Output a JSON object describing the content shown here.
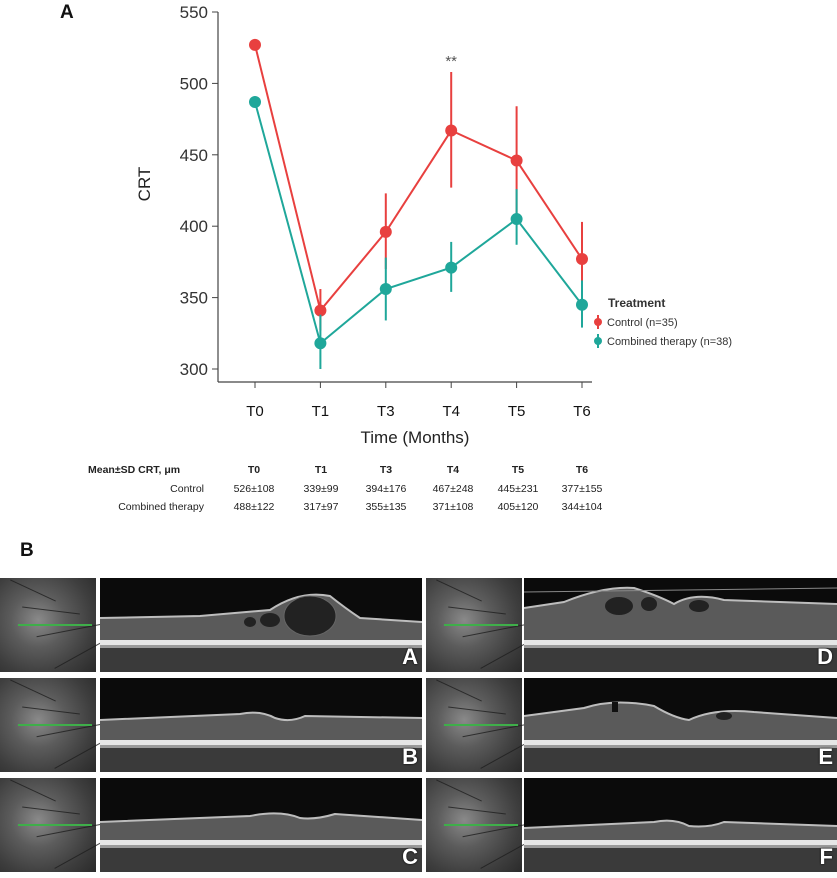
{
  "panel_a_label": "A",
  "panel_b_label": "B",
  "chart_data": {
    "type": "line",
    "ylabel": "CRT",
    "xlabel": "Time (Months)",
    "categories": [
      "T0",
      "T1",
      "T3",
      "T4",
      "T5",
      "T6"
    ],
    "ylim": [
      300,
      550
    ],
    "yticks": [
      300,
      350,
      400,
      450,
      500,
      550
    ],
    "grid": false,
    "legend": {
      "title": "Treatment",
      "placement": "right"
    },
    "series": [
      {
        "name": "Control (n=35)",
        "color": "#e8403f",
        "values": [
          527,
          341,
          396,
          467,
          446,
          377
        ],
        "err_low": [
          527,
          327,
          370,
          427,
          408,
          352
        ],
        "err_high": [
          527,
          356,
          423,
          508,
          484,
          403
        ]
      },
      {
        "name": "Combined therapy (n=38)",
        "color": "#1fa79a",
        "values": [
          487,
          318,
          356,
          371,
          405,
          345
        ],
        "err_low": [
          487,
          300,
          334,
          354,
          387,
          329
        ],
        "err_high": [
          487,
          338,
          378,
          389,
          426,
          362
        ]
      }
    ],
    "annotations": [
      {
        "category": "T4",
        "text": "**"
      }
    ]
  },
  "table": {
    "header": [
      "Mean±SD CRT, μm",
      "T0",
      "T1",
      "T3",
      "T4",
      "T5",
      "T6"
    ],
    "rows": [
      [
        "Control",
        "526±108",
        "339±99",
        "394±176",
        "467±248",
        "445±231",
        "377±155"
      ],
      [
        "Combined therapy",
        "488±122",
        "317±97",
        "355±135",
        "371±108",
        "405±120",
        "344±104"
      ]
    ]
  },
  "oct_images": [
    {
      "label": "A"
    },
    {
      "label": "B"
    },
    {
      "label": "C"
    },
    {
      "label": "D"
    },
    {
      "label": "E"
    },
    {
      "label": "F"
    }
  ]
}
